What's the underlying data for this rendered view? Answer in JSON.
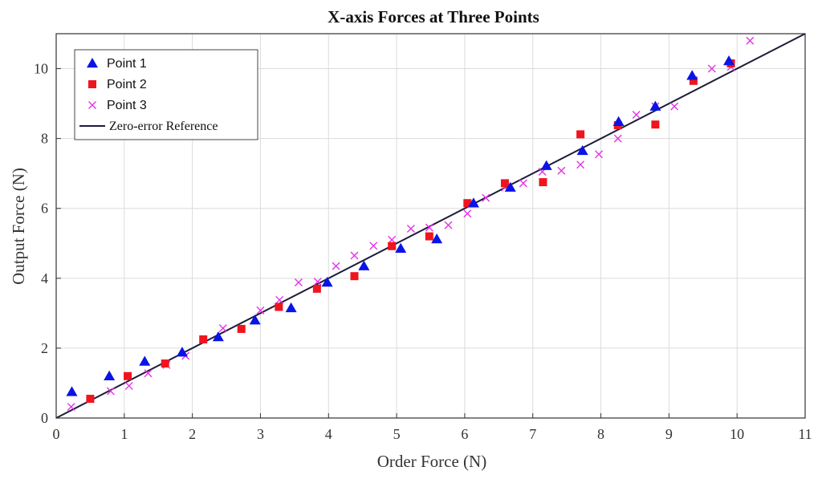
{
  "chart_data": {
    "type": "scatter",
    "title": "X-axis Forces at Three Points",
    "xlabel": "Order Force (N)",
    "ylabel": "Output Force (N)",
    "xlim": [
      0,
      11
    ],
    "ylim": [
      0,
      11
    ],
    "xticks": [
      "0",
      "1",
      "2",
      "3",
      "4",
      "5",
      "6",
      "7",
      "8",
      "9",
      "10",
      "11"
    ],
    "yticks": [
      "0",
      "2",
      "4",
      "6",
      "8",
      "10"
    ],
    "grid": true,
    "legend_position": "top-left",
    "series": [
      {
        "name": "Point 1",
        "marker": "triangle",
        "color": "#0a14e6",
        "points": [
          [
            0.23,
            0.75
          ],
          [
            0.78,
            1.2
          ],
          [
            1.3,
            1.62
          ],
          [
            1.85,
            1.88
          ],
          [
            2.38,
            2.32
          ],
          [
            2.92,
            2.8
          ],
          [
            3.45,
            3.15
          ],
          [
            3.98,
            3.88
          ],
          [
            4.52,
            4.35
          ],
          [
            5.06,
            4.85
          ],
          [
            5.59,
            5.12
          ],
          [
            6.13,
            6.15
          ],
          [
            6.67,
            6.6
          ],
          [
            7.2,
            7.22
          ],
          [
            7.73,
            7.65
          ],
          [
            8.26,
            8.48
          ],
          [
            8.8,
            8.92
          ],
          [
            9.34,
            9.8
          ],
          [
            9.88,
            10.22
          ]
        ]
      },
      {
        "name": "Point 2",
        "marker": "square",
        "color": "#f0141e",
        "points": [
          [
            0.5,
            0.55
          ],
          [
            1.05,
            1.2
          ],
          [
            1.6,
            1.56
          ],
          [
            2.16,
            2.25
          ],
          [
            2.72,
            2.55
          ],
          [
            3.27,
            3.18
          ],
          [
            3.83,
            3.7
          ],
          [
            4.38,
            4.06
          ],
          [
            4.93,
            4.92
          ],
          [
            5.48,
            5.2
          ],
          [
            6.04,
            6.15
          ],
          [
            6.59,
            6.72
          ],
          [
            7.15,
            6.75
          ],
          [
            7.7,
            8.12
          ],
          [
            8.25,
            8.38
          ],
          [
            8.8,
            8.4
          ],
          [
            9.36,
            9.65
          ],
          [
            9.91,
            10.15
          ]
        ]
      },
      {
        "name": "Point 3",
        "marker": "x",
        "color": "#e632e6",
        "points": [
          [
            0.22,
            0.32
          ],
          [
            0.8,
            0.77
          ],
          [
            1.07,
            0.92
          ],
          [
            1.35,
            1.28
          ],
          [
            1.62,
            1.52
          ],
          [
            1.9,
            1.78
          ],
          [
            2.45,
            2.57
          ],
          [
            3.0,
            3.08
          ],
          [
            3.28,
            3.38
          ],
          [
            3.56,
            3.88
          ],
          [
            3.84,
            3.9
          ],
          [
            4.11,
            4.35
          ],
          [
            4.38,
            4.65
          ],
          [
            4.66,
            4.93
          ],
          [
            4.93,
            5.1
          ],
          [
            5.21,
            5.42
          ],
          [
            5.48,
            5.45
          ],
          [
            5.76,
            5.52
          ],
          [
            6.04,
            5.85
          ],
          [
            6.31,
            6.3
          ],
          [
            6.59,
            6.6
          ],
          [
            6.86,
            6.72
          ],
          [
            7.14,
            7.05
          ],
          [
            7.42,
            7.08
          ],
          [
            7.7,
            7.25
          ],
          [
            7.97,
            7.55
          ],
          [
            8.25,
            8.0
          ],
          [
            8.52,
            8.68
          ],
          [
            8.8,
            8.92
          ],
          [
            9.08,
            8.92
          ],
          [
            9.36,
            9.67
          ],
          [
            9.63,
            10.0
          ],
          [
            9.91,
            10.05
          ],
          [
            10.19,
            10.8
          ]
        ]
      },
      {
        "name": "Zero-error Reference",
        "marker": "line",
        "color": "#1c1c3a",
        "x": [
          0,
          11
        ],
        "y": [
          0,
          11
        ]
      }
    ]
  }
}
